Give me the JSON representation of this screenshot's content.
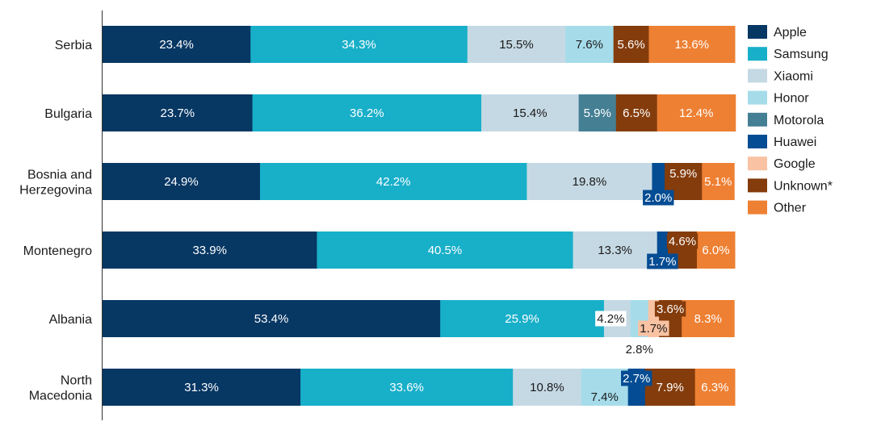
{
  "chart_data": {
    "type": "bar",
    "orientation": "horizontal",
    "stacked": true,
    "title": "",
    "xlabel": "",
    "ylabel": "",
    "xlim": [
      0,
      100
    ],
    "grid": false,
    "legend_position": "right",
    "categories": [
      "Serbia",
      "Bulgaria",
      "Bosnia and Herzegovina",
      "Montenegro",
      "Albania",
      "North Macedonia"
    ],
    "category_lines": [
      [
        "Serbia"
      ],
      [
        "Bulgaria"
      ],
      [
        "Bosnia and",
        "Herzegovina"
      ],
      [
        "Montenegro"
      ],
      [
        "Albania"
      ],
      [
        "North",
        "Macedonia"
      ]
    ],
    "series": [
      {
        "name": "Apple",
        "color": "#073763",
        "values": [
          23.4,
          23.7,
          24.9,
          33.9,
          53.4,
          31.3
        ],
        "labels": [
          "23.4%",
          "23.7%",
          "24.9%",
          "33.9%",
          "53.4%",
          "31.3%"
        ]
      },
      {
        "name": "Samsung",
        "color": "#18afc9",
        "values": [
          34.3,
          36.2,
          42.2,
          40.5,
          25.9,
          33.6
        ],
        "labels": [
          "34.3%",
          "36.2%",
          "42.2%",
          "40.5%",
          "25.9%",
          "33.6%"
        ]
      },
      {
        "name": "Xiaomi",
        "color": "#c5d9e4",
        "values": [
          15.5,
          15.4,
          19.8,
          13.3,
          4.2,
          10.8
        ],
        "labels": [
          "15.5%",
          "15.4%",
          "19.8%",
          "13.3%",
          "4.2%",
          "10.8%"
        ]
      },
      {
        "name": "Honor",
        "color": "#a6dcea",
        "values": [
          7.6,
          0,
          0,
          0,
          2.8,
          7.4
        ],
        "labels": [
          "7.6%",
          "",
          "",
          "",
          "2.8%",
          "7.4%"
        ]
      },
      {
        "name": "Motorola",
        "color": "#447f94",
        "values": [
          0,
          5.9,
          0,
          0,
          0,
          0
        ],
        "labels": [
          "",
          "5.9%",
          "",
          "",
          "",
          ""
        ]
      },
      {
        "name": "Huawei",
        "color": "#044c93",
        "values": [
          0,
          0,
          2.0,
          1.7,
          0,
          2.7
        ],
        "labels": [
          "",
          "",
          "2.0%",
          "1.7%",
          "",
          "2.7%"
        ]
      },
      {
        "name": "Google",
        "color": "#f8c2a3",
        "values": [
          0,
          0,
          0,
          0,
          1.7,
          0
        ],
        "labels": [
          "",
          "",
          "",
          "",
          "1.7%",
          ""
        ]
      },
      {
        "name": "Unknown*",
        "color": "#843c0c",
        "values": [
          5.6,
          6.5,
          5.9,
          4.6,
          3.6,
          7.9
        ],
        "labels": [
          "5.6%",
          "6.5%",
          "5.9%",
          "4.6%",
          "3.6%",
          "7.9%"
        ]
      },
      {
        "name": "Other",
        "color": "#ee8033",
        "values": [
          13.6,
          12.4,
          5.1,
          6.0,
          8.3,
          6.3
        ],
        "labels": [
          "13.6%",
          "12.4%",
          "5.1%",
          "6.0%",
          "8.3%",
          "6.3%"
        ]
      }
    ]
  }
}
